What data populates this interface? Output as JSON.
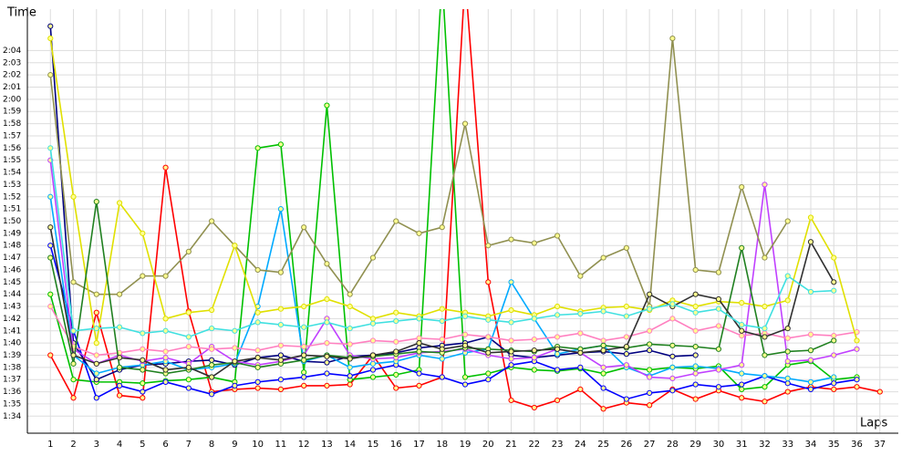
{
  "chart_data": {
    "type": "line",
    "y_label": "Time",
    "x_label": "Laps",
    "x": [
      1,
      2,
      3,
      4,
      5,
      6,
      7,
      8,
      9,
      10,
      11,
      12,
      13,
      14,
      15,
      16,
      17,
      18,
      19,
      20,
      21,
      22,
      23,
      24,
      25,
      26,
      27,
      28,
      29,
      30,
      31,
      32,
      33,
      34,
      35,
      36,
      37
    ],
    "xlim": [
      0,
      37.8
    ],
    "xticks": [
      1,
      2,
      3,
      4,
      5,
      6,
      7,
      8,
      9,
      10,
      11,
      12,
      13,
      14,
      15,
      16,
      17,
      18,
      19,
      20,
      21,
      22,
      23,
      24,
      25,
      26,
      27,
      28,
      29,
      30,
      31,
      32,
      33,
      34,
      35,
      36,
      37
    ],
    "ylim": [
      92.6,
      127.4
    ],
    "yticks": [
      {
        "value": 94,
        "label": "1:34"
      },
      {
        "value": 95,
        "label": "1:35"
      },
      {
        "value": 96,
        "label": "1:36"
      },
      {
        "value": 97,
        "label": "1:37"
      },
      {
        "value": 98,
        "label": "1:38"
      },
      {
        "value": 99,
        "label": "1:39"
      },
      {
        "value": 100,
        "label": "1:40"
      },
      {
        "value": 101,
        "label": "1:41"
      },
      {
        "value": 102,
        "label": "1:42"
      },
      {
        "value": 103,
        "label": "1:43"
      },
      {
        "value": 104,
        "label": "1:44"
      },
      {
        "value": 105,
        "label": "1:45"
      },
      {
        "value": 106,
        "label": "1:46"
      },
      {
        "value": 107,
        "label": "1:47"
      },
      {
        "value": 108,
        "label": "1:48"
      },
      {
        "value": 109,
        "label": "1:49"
      },
      {
        "value": 110,
        "label": "1:50"
      },
      {
        "value": 111,
        "label": "1:51"
      },
      {
        "value": 112,
        "label": "1:52"
      },
      {
        "value": 113,
        "label": "1:53"
      },
      {
        "value": 114,
        "label": "1:54"
      },
      {
        "value": 115,
        "label": "1:55"
      },
      {
        "value": 116,
        "label": "1:56"
      },
      {
        "value": 117,
        "label": "1:57"
      },
      {
        "value": 118,
        "label": "1:58"
      },
      {
        "value": 119,
        "label": "1:59"
      },
      {
        "value": 120,
        "label": "2:00"
      },
      {
        "value": 121,
        "label": "2:01"
      },
      {
        "value": 122,
        "label": "2:02"
      },
      {
        "value": 123,
        "label": "2:03"
      },
      {
        "value": 124,
        "label": "2:04"
      }
    ],
    "grid": true,
    "series": [
      {
        "color": "#ff0000",
        "values": [
          99,
          95.5,
          102.5,
          95.7,
          95.5,
          114.4,
          102.6,
          96,
          96.2,
          96.3,
          96.2,
          96.5,
          96.5,
          96.6,
          99,
          96.3,
          96.5,
          97.2,
          130,
          105,
          95.3,
          94.7,
          95.3,
          96.2,
          94.6,
          95.1,
          94.9,
          96.2,
          95.4,
          96.1,
          95.5,
          95.2,
          96,
          96.4,
          96.2,
          96.4,
          96
        ]
      },
      {
        "color": "#00c000",
        "values": [
          104,
          97,
          96.8,
          96.8,
          96.7,
          96.9,
          97,
          97.2,
          96.8,
          116,
          116.3,
          97.6,
          119.5,
          97,
          97.2,
          97.4,
          97.8,
          130,
          97.2,
          97.5,
          98,
          97.8,
          97.7,
          97.9,
          97.5,
          98,
          97.8,
          98,
          97.9,
          98.1,
          96.2,
          96.4,
          98.2,
          98.5,
          97,
          97.2,
          null
        ]
      },
      {
        "color": "#0000ff",
        "values": [
          108,
          101,
          95.5,
          96.5,
          96,
          96.8,
          96.3,
          95.8,
          96.5,
          96.8,
          97,
          97.2,
          97.5,
          97.3,
          97.8,
          98.2,
          97.5,
          97.2,
          96.6,
          97,
          98.2,
          98.5,
          97.8,
          98,
          96.3,
          95.4,
          95.9,
          96.1,
          96.6,
          96.4,
          96.6,
          97.3,
          96.7,
          96.2,
          96.7,
          97,
          null
        ]
      },
      {
        "color": "#000080",
        "values": [
          126,
          100,
          97,
          97.8,
          98.2,
          98.3,
          98.5,
          98.6,
          98.2,
          98.8,
          99,
          98.5,
          98.4,
          98.9,
          99,
          99.2,
          99.6,
          99.8,
          100,
          100.5,
          99,
          98.8,
          99,
          99.2,
          99.3,
          99.1,
          99.4,
          98.9,
          99,
          null,
          null,
          null,
          null,
          null,
          null,
          null,
          null
        ]
      },
      {
        "color": "#00aaff",
        "values": [
          112,
          99,
          97.5,
          98,
          98.2,
          98.5,
          97.8,
          98,
          98.3,
          103,
          111,
          98.5,
          99,
          98,
          98.3,
          98.5,
          99,
          98.7,
          99.2,
          99.5,
          105,
          102,
          99.1,
          99.5,
          99.8,
          98,
          97.3,
          98,
          98.1,
          97.9,
          97.5,
          97.3,
          97.1,
          96.8,
          97.2,
          null,
          null
        ]
      },
      {
        "color": "#c040ff",
        "values": [
          115,
          99.5,
          98.3,
          99,
          98.5,
          98.8,
          98.3,
          99.7,
          98.5,
          98.2,
          98.5,
          99,
          102,
          99,
          98.7,
          98.8,
          99.2,
          99.3,
          99.5,
          99,
          98.7,
          98.8,
          99.5,
          99.2,
          98,
          98.2,
          97.2,
          97.1,
          97.5,
          97.8,
          98.2,
          113,
          98.5,
          98.6,
          99,
          99.5,
          null
        ]
      },
      {
        "color": "#ff80c0",
        "values": [
          103,
          99.7,
          99,
          99.2,
          99.5,
          99.3,
          99.7,
          99.5,
          99.6,
          99.4,
          99.8,
          99.7,
          100,
          99.9,
          100.2,
          100.1,
          100.4,
          100.3,
          100.7,
          100.5,
          100.2,
          100.3,
          100.5,
          100.8,
          100.2,
          100.5,
          101,
          102,
          101,
          101.4,
          100.6,
          100.8,
          100.4,
          100.7,
          100.6,
          100.9,
          null
        ]
      },
      {
        "color": "#909050",
        "values": [
          122,
          105,
          104,
          104,
          105.5,
          105.5,
          107.5,
          110,
          108,
          106,
          105.8,
          109.5,
          106.5,
          104,
          107,
          110,
          109,
          109.5,
          118,
          108,
          108.5,
          108.2,
          108.8,
          105.5,
          107,
          107.8,
          103,
          125,
          106,
          105.8,
          112.8,
          107,
          110,
          null,
          null,
          null,
          null
        ]
      },
      {
        "color": "#e0e000",
        "values": [
          125,
          112,
          100,
          111.5,
          109,
          102,
          102.5,
          102.7,
          108,
          102.5,
          102.8,
          103,
          103.6,
          103,
          102,
          102.5,
          102.2,
          102.8,
          102.5,
          102.2,
          102.7,
          102.3,
          103,
          102.6,
          102.9,
          103,
          102.7,
          103.5,
          103,
          103.4,
          103.3,
          103,
          103.5,
          110.3,
          107,
          100.2,
          null
        ]
      },
      {
        "color": "#208020",
        "values": [
          107,
          98.3,
          111.6,
          98,
          97.8,
          97.5,
          97.8,
          98.2,
          98.4,
          98,
          98.3,
          98.6,
          99,
          98.8,
          98.9,
          99.1,
          99.3,
          99.2,
          99.6,
          99.5,
          99.4,
          99.3,
          99.7,
          99.5,
          99.8,
          99.6,
          99.9,
          99.8,
          99.7,
          99.5,
          107.8,
          99,
          99.3,
          99.4,
          100.2,
          null,
          null
        ]
      },
      {
        "color": "#303030",
        "values": [
          109.5,
          99,
          98.3,
          98.8,
          98.6,
          97.8,
          98,
          97.2,
          98.5,
          98.8,
          98.6,
          99,
          98.9,
          98.7,
          99,
          99.3,
          100,
          99.5,
          99.8,
          99.2,
          99.3,
          99.4,
          99.5,
          99.2,
          99.4,
          99.7,
          104,
          103,
          104,
          103.6,
          101,
          100.5,
          101.2,
          108.3,
          105,
          null,
          null
        ]
      },
      {
        "color": "#40e0e0",
        "values": [
          116,
          101,
          101.2,
          101.3,
          100.8,
          101,
          100.5,
          101.2,
          101,
          101.7,
          101.5,
          101.3,
          101.7,
          101.2,
          101.6,
          101.8,
          102,
          101.8,
          102.2,
          101.9,
          101.7,
          102,
          102.3,
          102.4,
          102.6,
          102.2,
          102.8,
          103.2,
          102.5,
          102.8,
          101.5,
          101.2,
          105.5,
          104.2,
          104.3,
          null,
          null
        ]
      }
    ]
  }
}
